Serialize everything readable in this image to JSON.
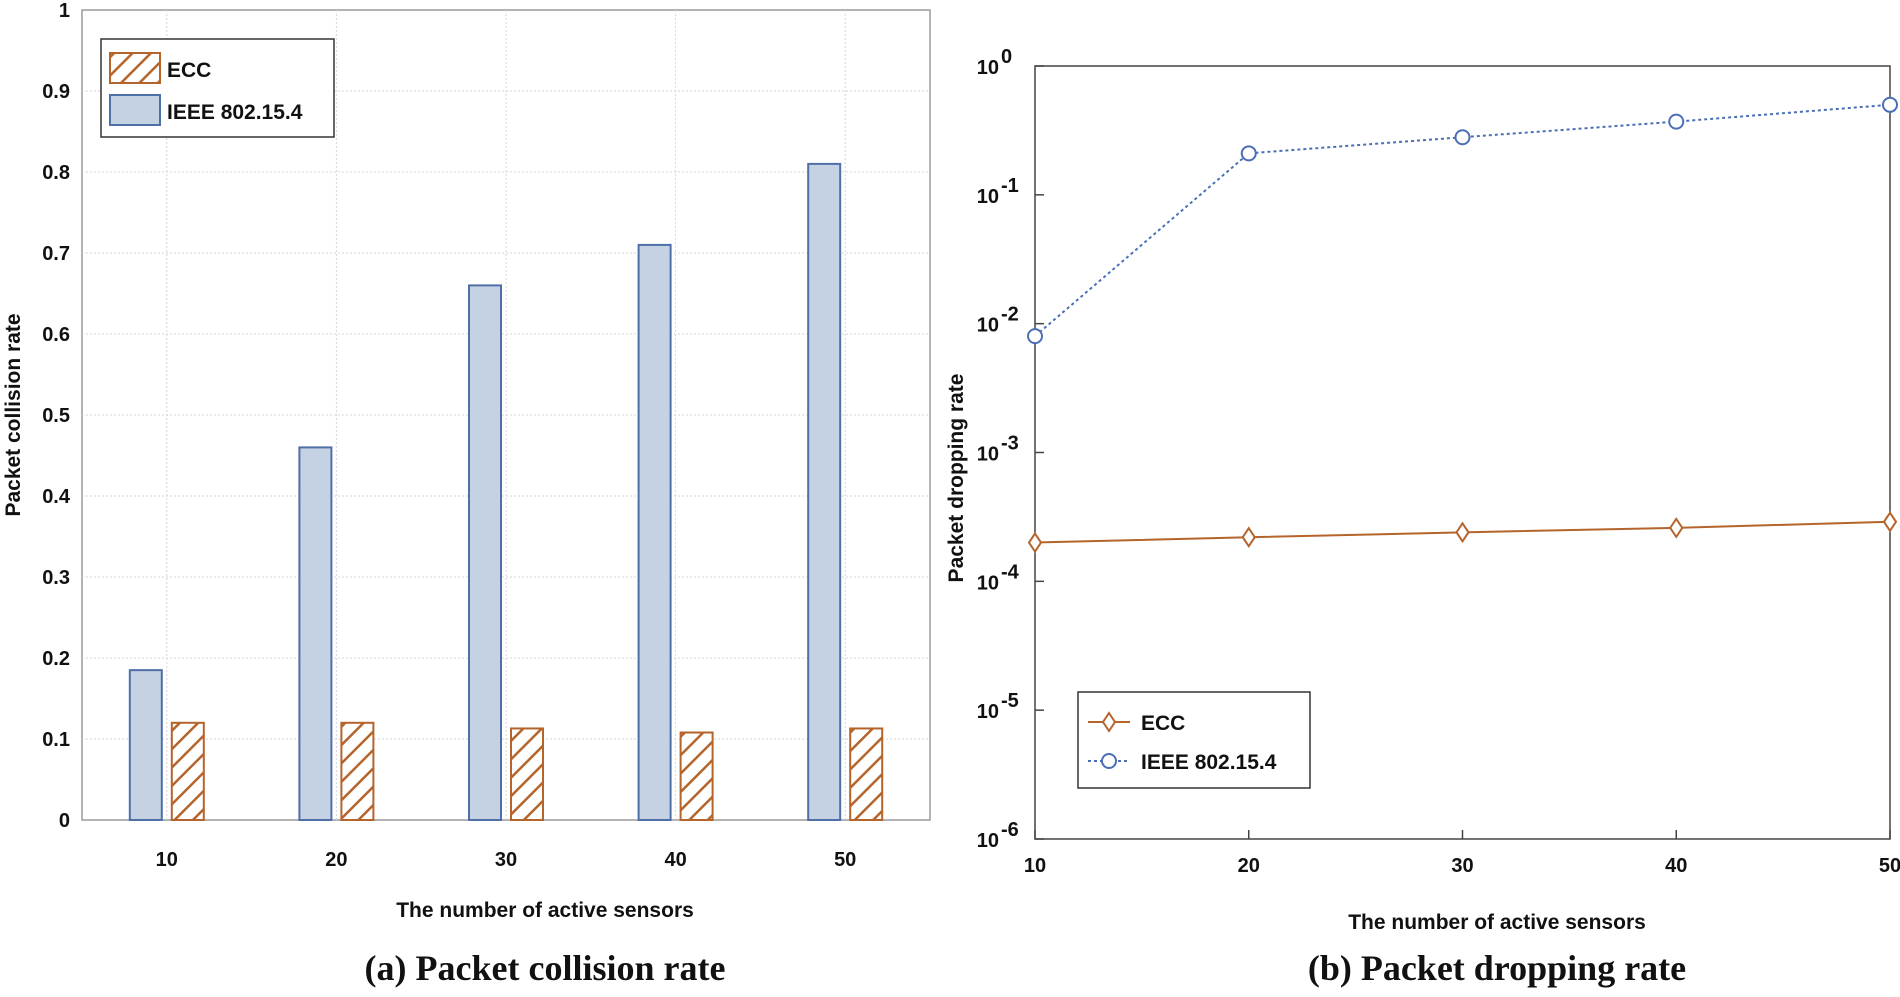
{
  "chart_data": [
    {
      "type": "bar",
      "caption": "(a) Packet collision rate",
      "xlabel": "The number of active sensors",
      "ylabel": "Packet  collision rate",
      "categories": [
        "10",
        "20",
        "30",
        "40",
        "50"
      ],
      "ylim": [
        0,
        1
      ],
      "yticks": [
        "0",
        "0.1",
        "0.2",
        "0.3",
        "0.4",
        "0.5",
        "0.6",
        "0.7",
        "0.8",
        "0.9",
        "1"
      ],
      "grid": true,
      "legend_position": "top-left",
      "series": [
        {
          "name": "IEEE 802.15.4",
          "values": [
            0.185,
            0.46,
            0.66,
            0.71,
            0.81
          ],
          "color": "#c5d2e3",
          "edge": "#4f6fa8"
        },
        {
          "name": "ECC",
          "values": [
            0.12,
            0.12,
            0.113,
            0.108,
            0.113
          ],
          "color": "#b5642c",
          "pattern": "hatched"
        }
      ]
    },
    {
      "type": "line",
      "caption": "(b) Packet dropping rate",
      "xlabel": "The number of active sensors",
      "ylabel": "Packet dropping rate",
      "x": [
        10,
        20,
        30,
        40,
        50
      ],
      "yscale": "log",
      "ylim": [
        1e-06,
        1
      ],
      "yticks": [
        {
          "base": "10",
          "exp": "0"
        },
        {
          "base": "10",
          "exp": "-1"
        },
        {
          "base": "10",
          "exp": "-2"
        },
        {
          "base": "10",
          "exp": "-3"
        },
        {
          "base": "10",
          "exp": "-4"
        },
        {
          "base": "10",
          "exp": "-5"
        },
        {
          "base": "10",
          "exp": "-6"
        }
      ],
      "grid": false,
      "legend_position": "bottom-left",
      "series": [
        {
          "name": "ECC",
          "values": [
            0.0002,
            0.00022,
            0.00024,
            0.00026,
            0.00029
          ],
          "color": "#b5642c",
          "marker": "diamond",
          "line": "solid"
        },
        {
          "name": "IEEE 802.15.4",
          "values": [
            0.008,
            0.21,
            0.28,
            0.37,
            0.5
          ],
          "color": "#4a6fb5",
          "marker": "circle",
          "line": "dotted"
        }
      ]
    }
  ]
}
